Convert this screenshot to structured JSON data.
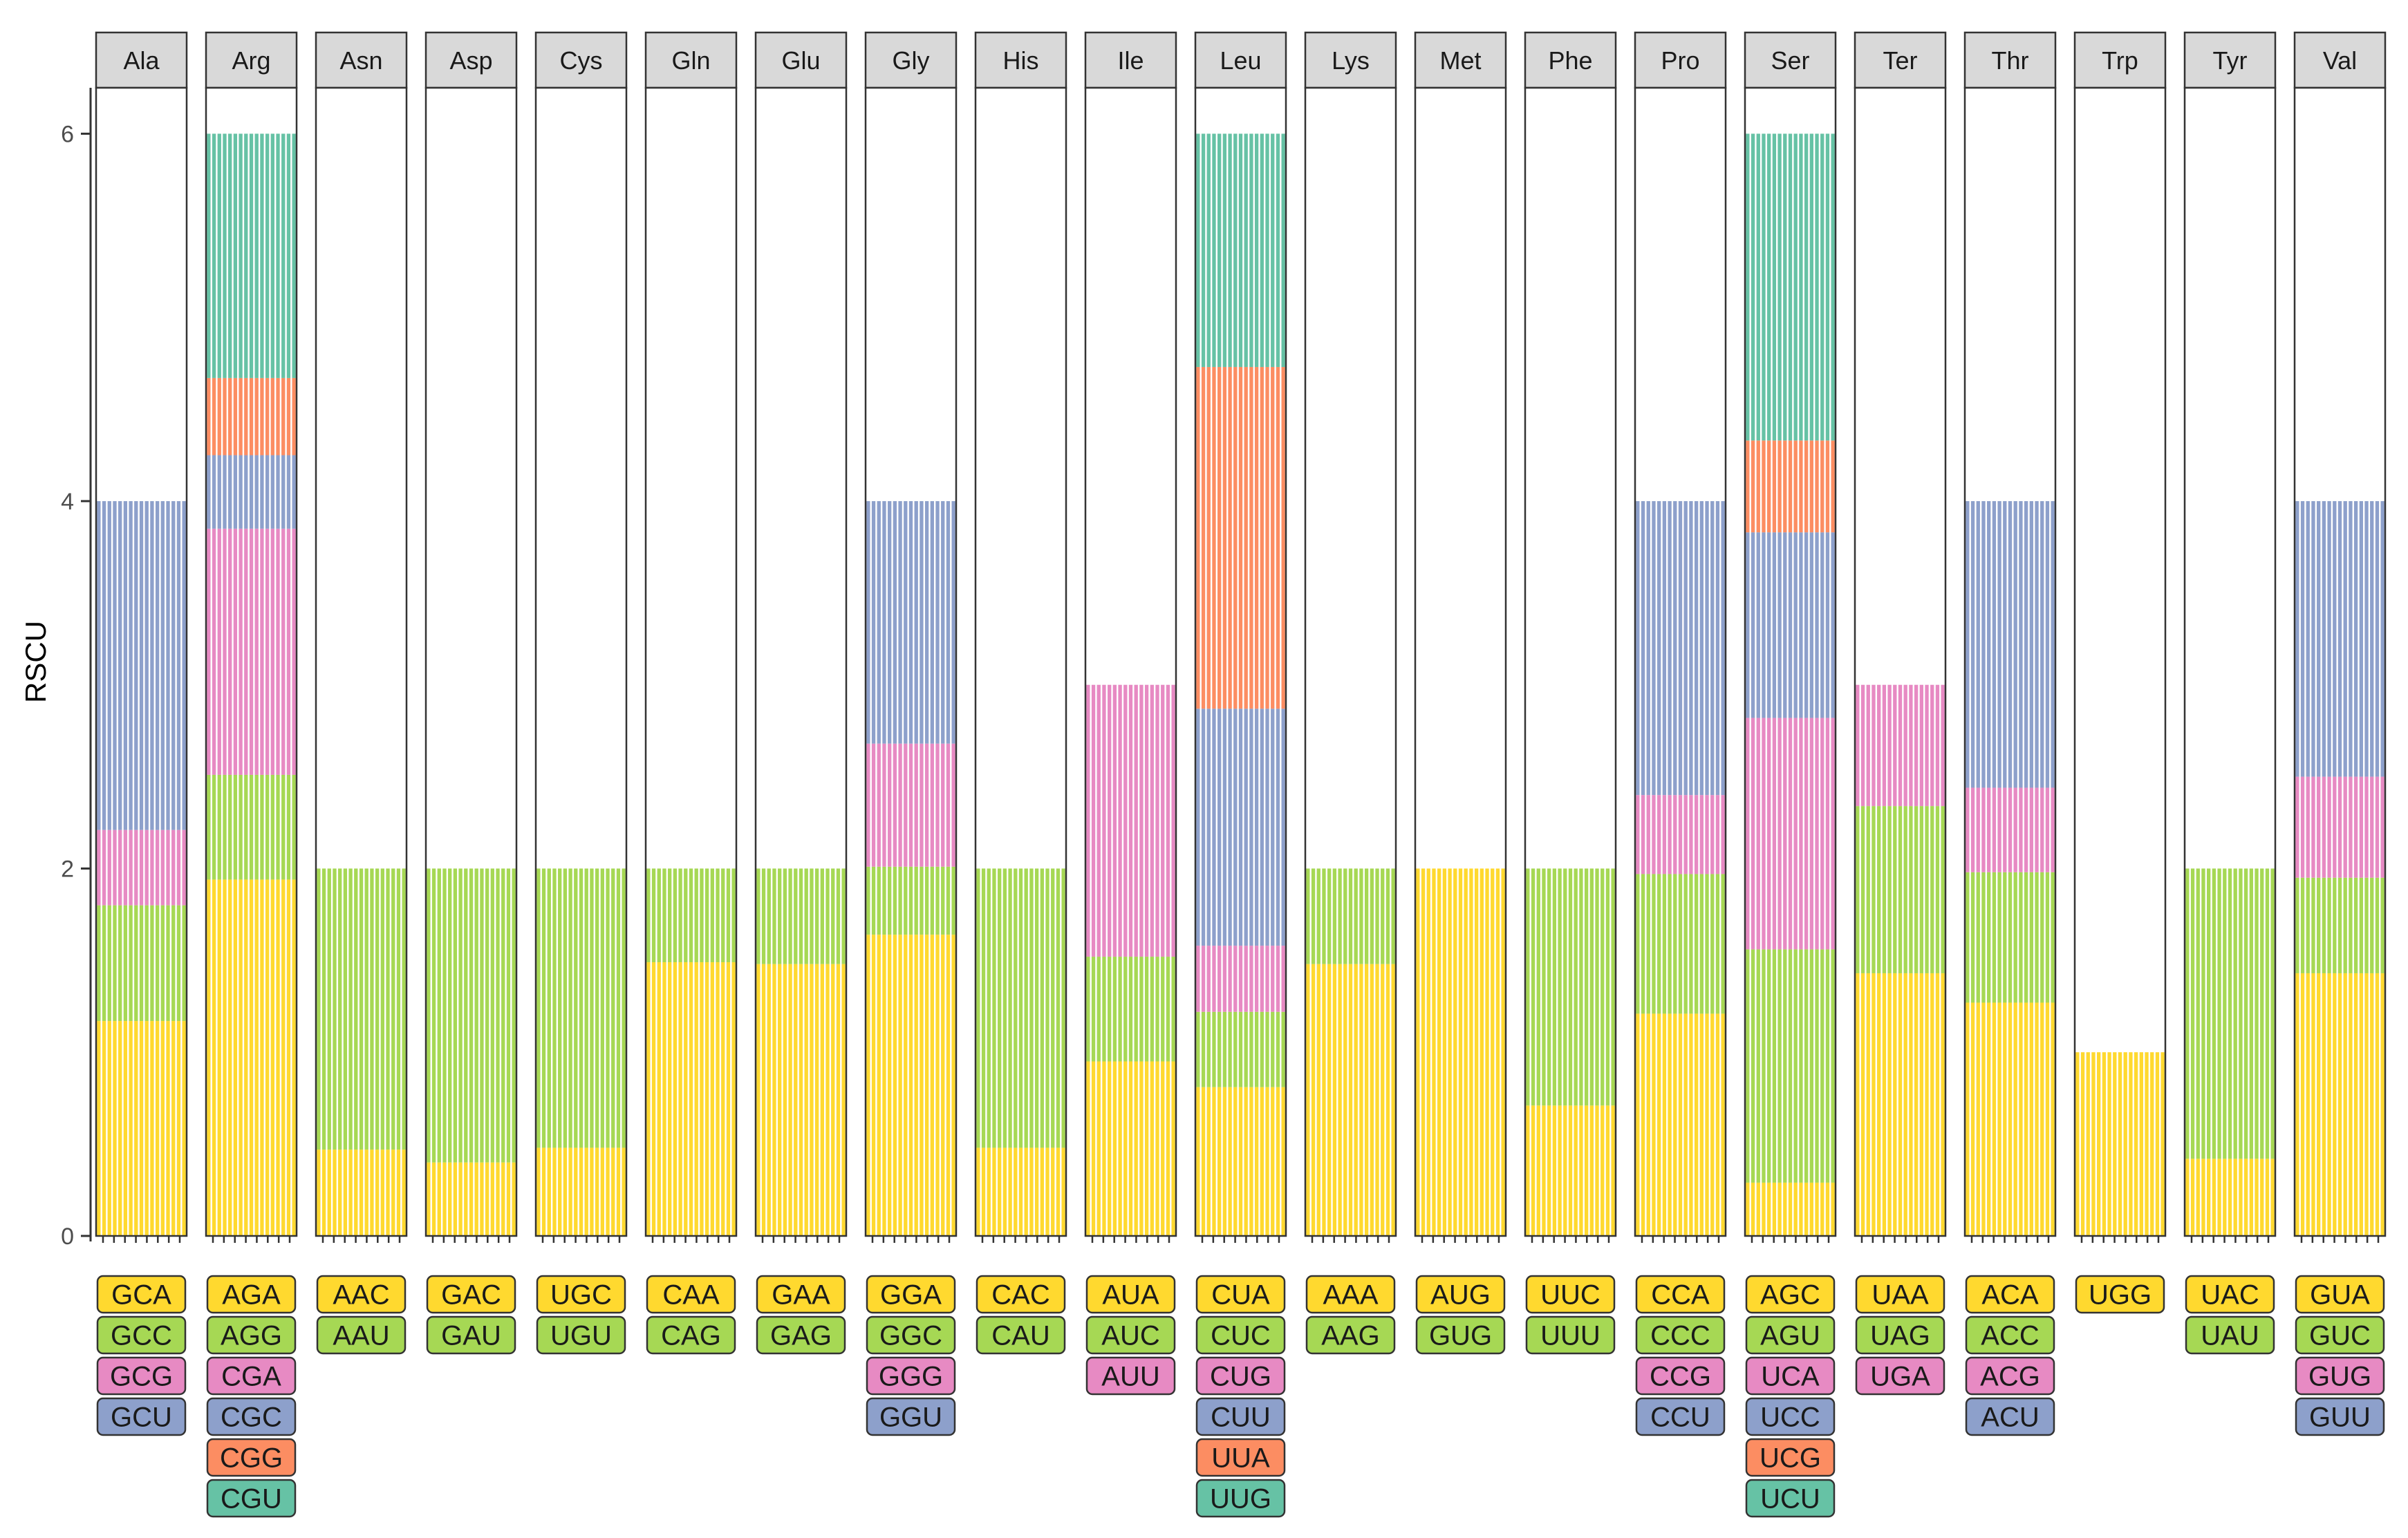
{
  "chart_data": {
    "type": "bar",
    "subtype": "faceted stacked bar",
    "title": "",
    "xlabel": "",
    "ylabel": "RSCU",
    "ylim": [
      0,
      6.25
    ],
    "yticks": [
      0,
      2,
      4,
      6
    ],
    "grid": false,
    "legend": "codon boxes below each panel",
    "colors": {
      "1": "#FFD92F",
      "2": "#A6D854",
      "3": "#E78AC3",
      "4": "#8DA0CB",
      "5": "#FC8D62",
      "6": "#66C2A5",
      "strip_bg": "#D9D9D9",
      "panel_border": "#333333"
    },
    "facets": [
      {
        "aa": "Ala",
        "codons": [
          "GCA",
          "GCC",
          "GCG",
          "GCU"
        ],
        "values": [
          1.17,
          0.63,
          0.41,
          1.79
        ]
      },
      {
        "aa": "Arg",
        "codons": [
          "AGA",
          "AGG",
          "CGA",
          "CGC",
          "CGG",
          "CGU"
        ],
        "values": [
          1.94,
          0.57,
          1.34,
          0.4,
          0.42,
          1.33
        ]
      },
      {
        "aa": "Asn",
        "codons": [
          "AAC",
          "AAU"
        ],
        "values": [
          0.47,
          1.53
        ]
      },
      {
        "aa": "Asp",
        "codons": [
          "GAC",
          "GAU"
        ],
        "values": [
          0.4,
          1.6
        ]
      },
      {
        "aa": "Cys",
        "codons": [
          "UGC",
          "UGU"
        ],
        "values": [
          0.48,
          1.52
        ]
      },
      {
        "aa": "Gln",
        "codons": [
          "CAA",
          "CAG"
        ],
        "values": [
          1.49,
          0.51
        ]
      },
      {
        "aa": "Glu",
        "codons": [
          "GAA",
          "GAG"
        ],
        "values": [
          1.48,
          0.52
        ]
      },
      {
        "aa": "Gly",
        "codons": [
          "GGA",
          "GGC",
          "GGG",
          "GGU"
        ],
        "values": [
          1.64,
          0.37,
          0.67,
          1.32
        ]
      },
      {
        "aa": "His",
        "codons": [
          "CAC",
          "CAU"
        ],
        "values": [
          0.48,
          1.52
        ]
      },
      {
        "aa": "Ile",
        "codons": [
          "AUA",
          "AUC",
          "AUU"
        ],
        "values": [
          0.95,
          0.57,
          1.48
        ]
      },
      {
        "aa": "Leu",
        "codons": [
          "CUA",
          "CUC",
          "CUG",
          "CUU",
          "UUA",
          "UUG"
        ],
        "values": [
          0.81,
          0.41,
          0.36,
          1.29,
          1.86,
          1.27
        ]
      },
      {
        "aa": "Lys",
        "codons": [
          "AAA",
          "AAG"
        ],
        "values": [
          1.48,
          0.52
        ]
      },
      {
        "aa": "Met",
        "codons": [
          "AUG",
          "GUG"
        ],
        "values": [
          2.0,
          0.0
        ]
      },
      {
        "aa": "Phe",
        "codons": [
          "UUC",
          "UUU"
        ],
        "values": [
          0.71,
          1.29
        ]
      },
      {
        "aa": "Pro",
        "codons": [
          "CCA",
          "CCC",
          "CCG",
          "CCU"
        ],
        "values": [
          1.21,
          0.76,
          0.43,
          1.6
        ]
      },
      {
        "aa": "Ser",
        "codons": [
          "AGC",
          "AGU",
          "UCA",
          "UCC",
          "UCG",
          "UCU"
        ],
        "values": [
          0.29,
          1.27,
          1.26,
          1.01,
          0.5,
          1.67
        ]
      },
      {
        "aa": "Ter",
        "codons": [
          "UAA",
          "UAG",
          "UGA"
        ],
        "values": [
          1.43,
          0.91,
          0.66
        ]
      },
      {
        "aa": "Thr",
        "codons": [
          "ACA",
          "ACC",
          "ACG",
          "ACU"
        ],
        "values": [
          1.27,
          0.71,
          0.46,
          1.56
        ]
      },
      {
        "aa": "Trp",
        "codons": [
          "UGG"
        ],
        "values": [
          1.0
        ]
      },
      {
        "aa": "Tyr",
        "codons": [
          "UAC",
          "UAU"
        ],
        "values": [
          0.42,
          1.58
        ]
      },
      {
        "aa": "Val",
        "codons": [
          "GUA",
          "GUC",
          "GUG",
          "GUU"
        ],
        "values": [
          1.43,
          0.52,
          0.55,
          1.5
        ]
      }
    ]
  }
}
